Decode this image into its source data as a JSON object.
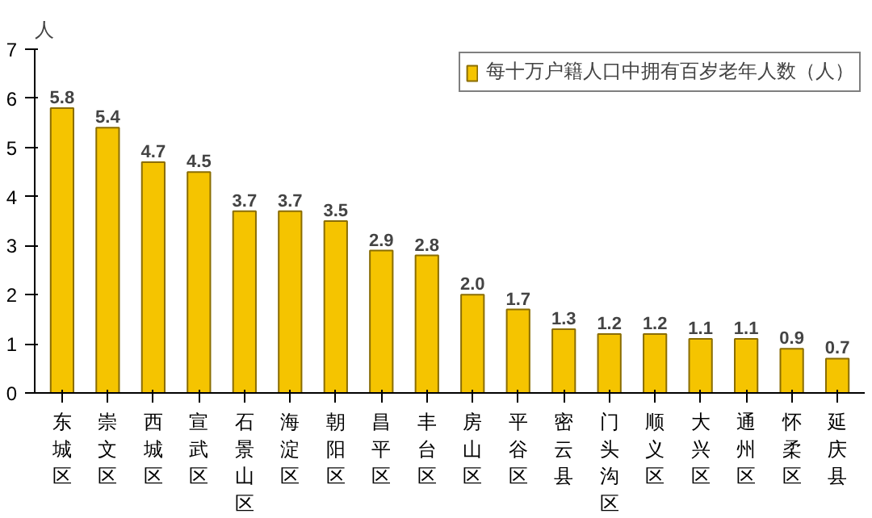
{
  "chart_data": {
    "type": "bar",
    "ylabel": "人",
    "categories": [
      "东城区",
      "崇文区",
      "西城区",
      "宣武区",
      "石景山区",
      "海淀区",
      "朝阳区",
      "昌平区",
      "丰台区",
      "房山区",
      "平谷区",
      "密云县",
      "门头沟区",
      "顺义区",
      "大兴区",
      "通州区",
      "怀柔区",
      "延庆县"
    ],
    "series": [
      {
        "name": "每十万户籍人口中拥有百岁老年人数（人）",
        "color": "#f5c400",
        "values": [
          5.8,
          5.4,
          4.7,
          4.5,
          3.7,
          3.7,
          3.5,
          2.9,
          2.8,
          2.0,
          1.7,
          1.3,
          1.2,
          1.2,
          1.1,
          1.1,
          0.9,
          0.7
        ],
        "value_labels": [
          "5.8",
          "5.4",
          "4.7",
          "4.5",
          "3.7",
          "3.7",
          "3.5",
          "2.9",
          "2.8",
          "2.0",
          "1.7",
          "1.3",
          "1.2",
          "1.2",
          "1.1",
          "1.1",
          "0.9",
          "0.7"
        ]
      }
    ],
    "ylim": [
      0,
      7
    ],
    "yticks": [
      0,
      1,
      2,
      3,
      4,
      5,
      6,
      7
    ],
    "grid": false,
    "legend": "top right"
  }
}
